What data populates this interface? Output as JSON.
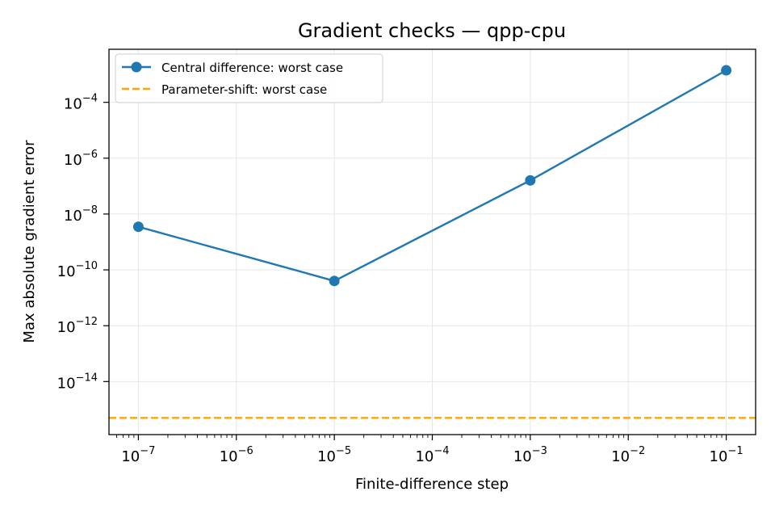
{
  "chart_data": {
    "type": "line",
    "title": "Gradient checks — qpp-cpu",
    "xlabel": "Finite-difference step",
    "ylabel": "Max absolute gradient error",
    "xscale": "log",
    "yscale": "log",
    "xlim_log10": [
      -7.3,
      -0.7
    ],
    "ylim_log10": [
      -15.9,
      -2.1
    ],
    "x_ticks_log10": [
      -7,
      -6,
      -5,
      -4,
      -3,
      -2,
      -1
    ],
    "y_ticks_log10": [
      -14,
      -12,
      -10,
      -8,
      -6,
      -4
    ],
    "grid": true,
    "legend_position": "top-left",
    "series": [
      {
        "name": "Central difference: worst case",
        "kind": "line-marker",
        "color": "#1f77b4",
        "x": [
          1e-07,
          1e-05,
          0.001,
          0.1
        ],
        "y": [
          3.5e-09,
          4e-11,
          1.6e-07,
          0.0014
        ]
      },
      {
        "name": "Parameter-shift: worst case",
        "kind": "hline-dashed",
        "color": "#ffa500",
        "y": 5e-16
      }
    ]
  }
}
